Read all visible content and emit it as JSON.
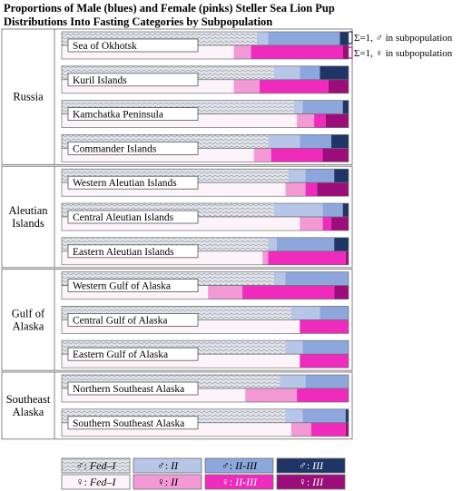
{
  "title_lines": [
    "Proportions  of Male (blues) and Female (pinks) Steller Sea Lion Pup",
    "Distributions  Into Fasting Categories by Subpopulation"
  ],
  "annotations": {
    "male_sum": "Σ=1, ♂ in subpopulation",
    "female_sum": "Σ=1, ♀ in subpopulation"
  },
  "colors": {
    "male_fed": "#e2e4ea",
    "male_fed_zigzag": "#b0b4bf",
    "male_II": "#b7c5e6",
    "male_II_III": "#8da6dc",
    "male_III": "#1f3566",
    "female_fed": "#fdf4fa",
    "female_II": "#f39ad6",
    "female_II_III": "#ef2bbd",
    "female_III": "#9b0d78",
    "male_bracket": "#1f3566",
    "female_bracket": "#c21a92"
  },
  "legend": [
    [
      {
        "sym": "♂",
        "label": "Fed–I",
        "key": "male_fed"
      },
      {
        "sym": "♂",
        "label": "II",
        "key": "male_II"
      },
      {
        "sym": "♂",
        "label": "II-III",
        "key": "male_II_III"
      },
      {
        "sym": "♂",
        "label": "III",
        "key": "male_III"
      }
    ],
    [
      {
        "sym": "♀",
        "label": "Fed–I",
        "key": "female_fed"
      },
      {
        "sym": "♀",
        "label": "II",
        "key": "female_II"
      },
      {
        "sym": "♀",
        "label": "II-III",
        "key": "female_II_III"
      },
      {
        "sym": "♀",
        "label": "III",
        "key": "female_III"
      }
    ]
  ],
  "chart_data": {
    "type": "bar",
    "orientation": "horizontal",
    "stacked": true,
    "xlim": [
      0,
      1
    ],
    "categories_order": [
      "Fed–I",
      "II",
      "II-III",
      "III"
    ],
    "regions": [
      {
        "name": "Russia",
        "subpopulations": [
          {
            "name": "Sea of Okhotsk",
            "male": [
              0.68,
              0.04,
              0.25,
              0.03
            ],
            "female": [
              0.6,
              0.06,
              0.32,
              0.02
            ]
          },
          {
            "name": "Kuril Islands",
            "male": [
              0.74,
              0.09,
              0.07,
              0.1
            ],
            "female": [
              0.6,
              0.09,
              0.24,
              0.07
            ]
          },
          {
            "name": "Kamchatka Peninsula",
            "male": [
              0.81,
              0.03,
              0.14,
              0.02
            ],
            "female": [
              0.82,
              0.06,
              0.04,
              0.08
            ]
          },
          {
            "name": "Commander Islands",
            "male": [
              0.72,
              0.11,
              0.11,
              0.06
            ],
            "female": [
              0.67,
              0.06,
              0.18,
              0.09
            ]
          }
        ]
      },
      {
        "name": "Aleutian Islands",
        "subpopulations": [
          {
            "name": "Western Aleutian Islands",
            "male": [
              0.79,
              0.06,
              0.1,
              0.05
            ],
            "female": [
              0.78,
              0.07,
              0.04,
              0.11
            ]
          },
          {
            "name": "Central Aleutian Islands",
            "male": [
              0.74,
              0.17,
              0.07,
              0.02
            ],
            "female": [
              0.83,
              0.08,
              0.03,
              0.06
            ]
          },
          {
            "name": "Eastern Aleutian Islands",
            "male": [
              0.72,
              0.03,
              0.2,
              0.05
            ],
            "female": [
              0.7,
              0.02,
              0.27,
              0.01
            ]
          }
        ]
      },
      {
        "name": "Gulf of Alaska",
        "subpopulations": [
          {
            "name": "Western Gulf of Alaska",
            "male": [
              0.74,
              0.04,
              0.22,
              0.0
            ],
            "female": [
              0.51,
              0.12,
              0.32,
              0.05
            ]
          },
          {
            "name": "Central Gulf of Alaska",
            "male": [
              0.8,
              0.1,
              0.1,
              0.0
            ],
            "female": [
              0.83,
              0.0,
              0.17,
              0.0
            ]
          },
          {
            "name": "Eastern Gulf of Alaska",
            "male": [
              0.78,
              0.06,
              0.16,
              0.0
            ],
            "female": [
              0.83,
              0.0,
              0.17,
              0.0
            ]
          }
        ]
      },
      {
        "name": "Southeast Alaska",
        "subpopulations": [
          {
            "name": "Northern Southeast Alaska",
            "male": [
              0.76,
              0.09,
              0.15,
              0.0
            ],
            "female": [
              0.64,
              0.18,
              0.18,
              0.0
            ]
          },
          {
            "name": "Southern Southeast Alaska",
            "male": [
              0.78,
              0.06,
              0.15,
              0.01
            ],
            "female": [
              0.8,
              0.07,
              0.12,
              0.01
            ]
          }
        ]
      }
    ]
  }
}
